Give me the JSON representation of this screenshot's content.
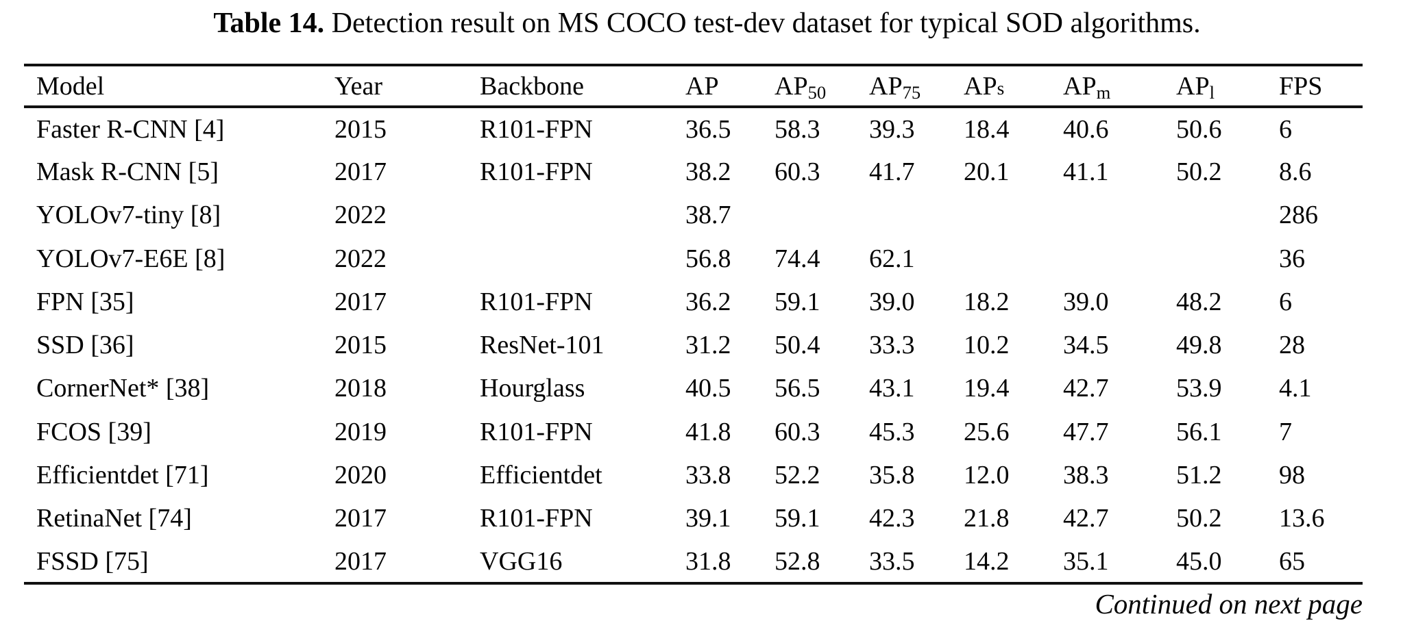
{
  "caption": {
    "label": "Table 14.",
    "text": " Detection result on MS COCO test-dev dataset for typical SOD algorithms."
  },
  "table": {
    "columns": [
      {
        "key": "model",
        "label": "Model",
        "sub": ""
      },
      {
        "key": "year",
        "label": "Year",
        "sub": ""
      },
      {
        "key": "backbone",
        "label": "Backbone",
        "sub": ""
      },
      {
        "key": "ap",
        "label": "AP",
        "sub": ""
      },
      {
        "key": "ap50",
        "label": "AP",
        "sub": "50",
        "sub_position": "lowered"
      },
      {
        "key": "ap75",
        "label": "AP",
        "sub": "75",
        "sub_position": "lowered"
      },
      {
        "key": "aps",
        "label": "AP",
        "sub": "s",
        "sub_position": "baseline"
      },
      {
        "key": "apm",
        "label": "AP",
        "sub": "m",
        "sub_position": "lowered"
      },
      {
        "key": "apl",
        "label": "AP",
        "sub": "l",
        "sub_position": "lowered"
      },
      {
        "key": "fps",
        "label": "FPS",
        "sub": ""
      }
    ],
    "rows": [
      [
        "Faster R-CNN [4]",
        "2015",
        "R101-FPN",
        "36.5",
        "58.3",
        "39.3",
        "18.4",
        "40.6",
        "50.6",
        "6"
      ],
      [
        "Mask R-CNN [5]",
        "2017",
        "R101-FPN",
        "38.2",
        "60.3",
        "41.7",
        "20.1",
        "41.1",
        "50.2",
        "8.6"
      ],
      [
        "YOLOv7-tiny [8]",
        "2022",
        "",
        "38.7",
        "",
        "",
        "",
        "",
        "",
        "286"
      ],
      [
        "YOLOv7-E6E [8]",
        "2022",
        "",
        "56.8",
        "74.4",
        "62.1",
        "",
        "",
        "",
        "36"
      ],
      [
        "FPN [35]",
        "2017",
        "R101-FPN",
        "36.2",
        "59.1",
        "39.0",
        "18.2",
        "39.0",
        "48.2",
        "6"
      ],
      [
        "SSD [36]",
        "2015",
        "ResNet-101",
        "31.2",
        "50.4",
        "33.3",
        "10.2",
        "34.5",
        "49.8",
        "28"
      ],
      [
        "CornerNet* [38]",
        "2018",
        "Hourglass",
        "40.5",
        "56.5",
        "43.1",
        "19.4",
        "42.7",
        "53.9",
        "4.1"
      ],
      [
        "FCOS [39]",
        "2019",
        "R101-FPN",
        "41.8",
        "60.3",
        "45.3",
        "25.6",
        "47.7",
        "56.1",
        "7"
      ],
      [
        "Efficientdet [71]",
        "2020",
        "Efficientdet",
        "33.8",
        "52.2",
        "35.8",
        "12.0",
        "38.3",
        "51.2",
        "98"
      ],
      [
        "RetinaNet [74]",
        "2017",
        "R101-FPN",
        "39.1",
        "59.1",
        "42.3",
        "21.8",
        "42.7",
        "50.2",
        "13.6"
      ],
      [
        "FSSD [75]",
        "2017",
        "VGG16",
        "31.8",
        "52.8",
        "33.5",
        "14.2",
        "35.1",
        "45.0",
        "65"
      ]
    ]
  },
  "footer": {
    "text": "Continued on next page"
  }
}
